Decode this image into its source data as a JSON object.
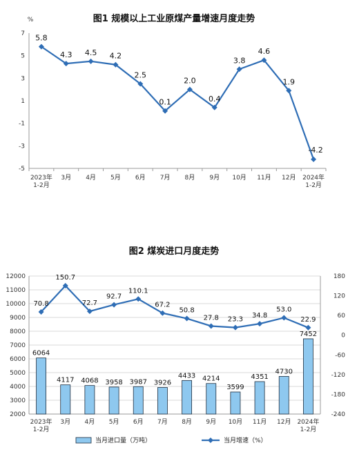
{
  "chart_data": [
    {
      "type": "line",
      "title": "图1  规模以上工业原煤产量增速月度走势",
      "ylabel": "%",
      "ylim": [
        -5,
        7
      ],
      "yticks": [
        "7",
        "5",
        "3",
        "1",
        "-1",
        "-3",
        "-5"
      ],
      "yticks_values": [
        7,
        5,
        3,
        1,
        -1,
        -3,
        -5
      ],
      "categories": [
        [
          "2023年",
          "1-2月"
        ],
        [
          "3月"
        ],
        [
          "4月"
        ],
        [
          "5月"
        ],
        [
          "6月"
        ],
        [
          "7月"
        ],
        [
          "8月"
        ],
        [
          "9月"
        ],
        [
          "10月"
        ],
        [
          "11月"
        ],
        [
          "12月"
        ],
        [
          "2024年",
          "1-2月"
        ]
      ],
      "values": [
        5.8,
        4.3,
        4.5,
        4.2,
        2.5,
        0.1,
        2.0,
        0.4,
        3.8,
        4.6,
        1.9,
        -4.2
      ],
      "value_labels": [
        "5.8",
        "4.3",
        "4.5",
        "4.2",
        "2.5",
        "0.1",
        "2.0",
        "0.4",
        "3.8",
        "4.6",
        "1.9",
        "-4.2"
      ],
      "color": "#2e6db5",
      "grid": false
    },
    {
      "type": "bar",
      "title": "图2  煤炭进口月度走势",
      "ylim_left": [
        2000,
        12000
      ],
      "yticks_left": [
        "12000",
        "11000",
        "10000",
        "9000",
        "8000",
        "7000",
        "6000",
        "5000",
        "4000",
        "3000",
        "2000"
      ],
      "yticks_left_values": [
        12000,
        11000,
        10000,
        9000,
        8000,
        7000,
        6000,
        5000,
        4000,
        3000,
        2000
      ],
      "ylim_right": [
        -240,
        180
      ],
      "yticks_right": [
        "180",
        "120",
        "60",
        "0",
        "-60",
        "-120",
        "-180",
        "-240"
      ],
      "yticks_right_values": [
        180,
        120,
        60,
        0,
        -60,
        -120,
        -180,
        -240
      ],
      "categories": [
        [
          "2023年",
          "1-2月"
        ],
        [
          "3月"
        ],
        [
          "4月"
        ],
        [
          "5月"
        ],
        [
          "6月"
        ],
        [
          "7月"
        ],
        [
          "8月"
        ],
        [
          "9月"
        ],
        [
          "10月"
        ],
        [
          "11月"
        ],
        [
          "12月"
        ],
        [
          "2024年",
          "1-2月"
        ]
      ],
      "series": [
        {
          "name": "当月进口量（万吨）",
          "type": "bar",
          "axis": "left",
          "values": [
            6064,
            4117,
            4068,
            3958,
            3987,
            3926,
            4433,
            4214,
            3599,
            4351,
            4730,
            7452
          ],
          "value_labels": [
            "6064",
            "4117",
            "4068",
            "3958",
            "3987",
            "3926",
            "4433",
            "4214",
            "3599",
            "4351",
            "4730",
            "7452"
          ],
          "color": "#8ec8ef"
        },
        {
          "name": "当月增速（%）",
          "type": "line",
          "axis": "right",
          "values": [
            70.8,
            150.7,
            72.7,
            92.7,
            110.1,
            67.2,
            50.8,
            27.8,
            23.3,
            34.8,
            53.0,
            22.9
          ],
          "value_labels": [
            "70.8",
            "150.7",
            "72.7",
            "92.7",
            "110.1",
            "67.2",
            "50.8",
            "27.8",
            "23.3",
            "34.8",
            "53.0",
            "22.9"
          ],
          "color": "#2e6db5"
        }
      ],
      "legend": "bottom",
      "grid": true
    }
  ]
}
